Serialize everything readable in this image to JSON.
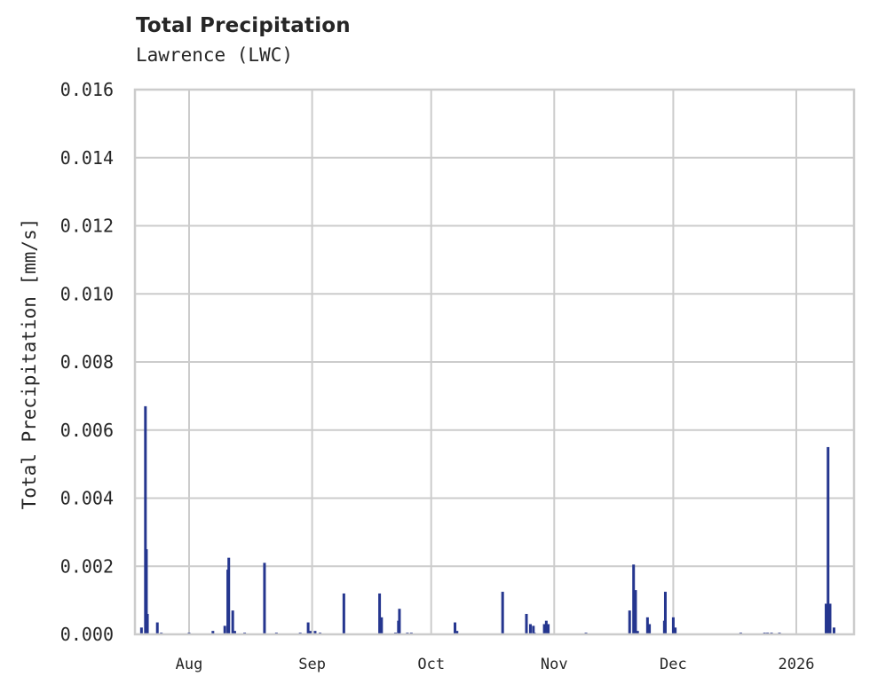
{
  "header": {
    "title": "Total Precipitation",
    "subtitle": "Lawrence (LWC)"
  },
  "colors": {
    "bar": "#25368f",
    "grid": "#cccccc",
    "frame": "#cccccc",
    "text": "#262626"
  },
  "chart_data": {
    "type": "bar",
    "title": "Total Precipitation",
    "subtitle": "Lawrence (LWC)",
    "xlabel": "",
    "ylabel": "Total Precipitation [mm/s]",
    "ylim": [
      0,
      0.016
    ],
    "yticks": [
      "0.000",
      "0.002",
      "0.004",
      "0.006",
      "0.008",
      "0.010",
      "0.012",
      "0.014",
      "0.016"
    ],
    "xlim": [
      "2025-07-18",
      "2026-01-15"
    ],
    "xticks": [
      {
        "label": "Aug",
        "date": "2025-08-01"
      },
      {
        "label": "Sep",
        "date": "2025-09-01"
      },
      {
        "label": "Oct",
        "date": "2025-10-01"
      },
      {
        "label": "Nov",
        "date": "2025-11-01"
      },
      {
        "label": "Dec",
        "date": "2025-12-01"
      },
      {
        "label": "2026",
        "date": "2026-01-01"
      }
    ],
    "grid": true,
    "legend": null,
    "x": [
      "2025-07-20",
      "2025-07-21",
      "2025-07-21T06",
      "2025-07-21T12",
      "2025-07-24",
      "2025-07-25",
      "2025-08-01",
      "2025-08-07",
      "2025-08-10",
      "2025-08-10T18",
      "2025-08-11",
      "2025-08-12",
      "2025-08-12T12",
      "2025-08-15",
      "2025-08-20",
      "2025-08-23",
      "2025-08-29",
      "2025-08-31",
      "2025-08-31T12",
      "2025-09-01T18",
      "2025-09-03",
      "2025-09-09",
      "2025-09-18",
      "2025-09-18T12",
      "2025-09-22",
      "2025-09-22T18",
      "2025-09-23",
      "2025-09-25",
      "2025-09-26",
      "2025-10-07",
      "2025-10-07T12",
      "2025-10-19",
      "2025-10-25",
      "2025-10-26",
      "2025-10-26T18",
      "2025-10-27",
      "2025-10-29T12",
      "2025-10-30",
      "2025-10-30T12",
      "2025-11-09",
      "2025-11-20",
      "2025-11-21",
      "2025-11-21T12",
      "2025-11-22",
      "2025-11-24T12",
      "2025-11-25",
      "2025-11-28T18",
      "2025-11-29",
      "2025-12-01",
      "2025-12-01T12",
      "2025-12-18",
      "2025-12-24",
      "2025-12-24T18",
      "2025-12-25T18",
      "2025-12-27T18",
      "2026-01-08T12",
      "2026-01-09",
      "2026-01-09T12",
      "2026-01-10T12"
    ],
    "values": [
      0.0002,
      0.0067,
      0.0025,
      0.0006,
      0.00035,
      5e-05,
      5e-05,
      0.0001,
      0.00025,
      0.0019,
      0.00225,
      0.0007,
      0.0001,
      5e-05,
      0.0021,
      5e-05,
      5e-05,
      0.00035,
      0.0001,
      0.0001,
      5e-05,
      0.0012,
      0.0012,
      0.0005,
      5e-05,
      0.0004,
      0.00075,
      5e-05,
      5e-05,
      0.00035,
      0.0001,
      0.00125,
      0.0006,
      0.0003,
      0.00025,
      5e-05,
      0.0003,
      0.0004,
      0.0003,
      5e-05,
      0.0007,
      0.00205,
      0.0013,
      0.0001,
      0.0005,
      0.0003,
      0.0004,
      0.00125,
      0.0005,
      0.0002,
      5e-05,
      5e-05,
      5e-05,
      5e-05,
      5e-05,
      0.0009,
      0.0055,
      0.0009,
      0.0002
    ]
  }
}
